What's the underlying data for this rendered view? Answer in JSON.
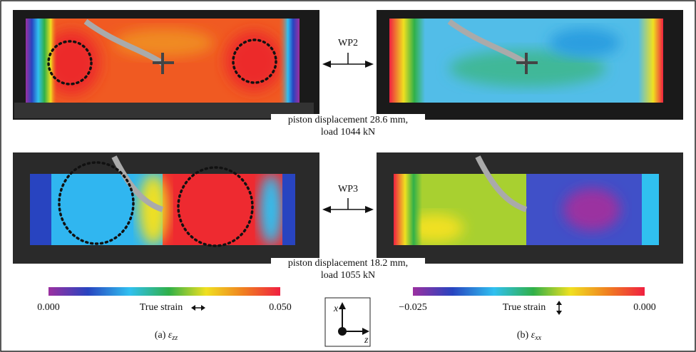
{
  "panels": [
    {
      "label": "WP2",
      "caption_lines": [
        "piston displacement 28.6 mm,",
        "load 1044 kN"
      ]
    },
    {
      "label": "WP3",
      "caption_lines": [
        "piston displacement 18.2 mm,",
        "load 1055 kN"
      ]
    }
  ],
  "colorbars": [
    {
      "min_label": "0.000",
      "title": "True strain",
      "max_label": "0.050"
    },
    {
      "min_label": "−0.025",
      "title": "True strain",
      "max_label": "0.000"
    }
  ],
  "axes_icon": {
    "x": "x",
    "z": "z"
  },
  "captions": [
    {
      "label": "(a)",
      "symbol": "ε",
      "subscript": "zz"
    },
    {
      "label": "(b)",
      "symbol": "ε",
      "subscript": "xx"
    }
  ]
}
